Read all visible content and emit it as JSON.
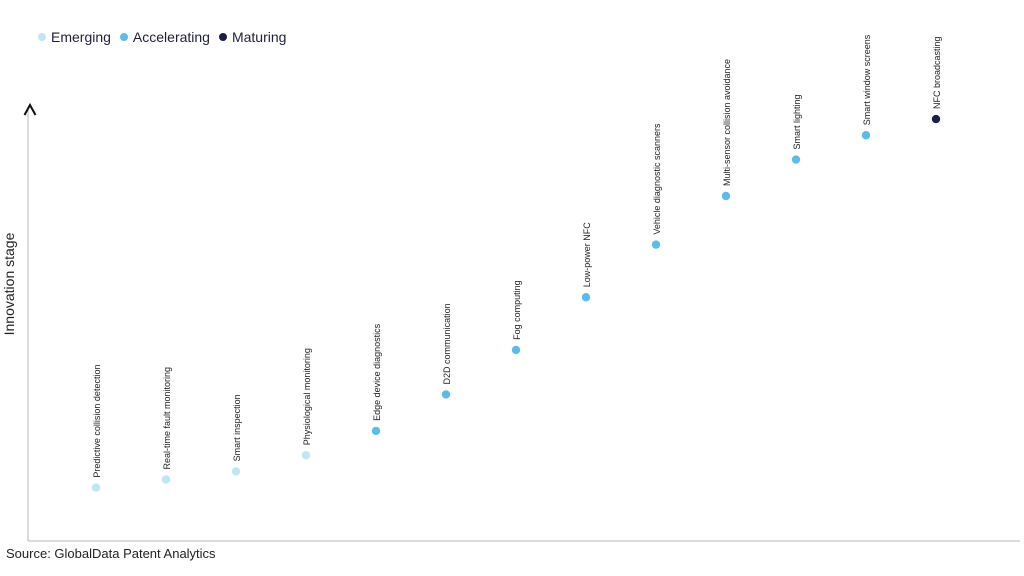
{
  "source": "Source: GlobalData Patent Analytics",
  "chart_data": {
    "type": "scatter",
    "title": "",
    "xlabel": "",
    "ylabel": "Innovation stage",
    "grid": false,
    "legend": {
      "placement": "top-left",
      "entries": [
        {
          "label": "Emerging",
          "color": "#bfe6f7"
        },
        {
          "label": "Accelerating",
          "color": "#5bbcea"
        },
        {
          "label": "Maturing",
          "color": "#1c1f45"
        }
      ]
    },
    "points": [
      {
        "label": "Predictive collision detection",
        "category": "Emerging",
        "y": 0.08
      },
      {
        "label": "Real-time fault monitoring",
        "category": "Emerging",
        "y": 0.1
      },
      {
        "label": "Smart inspection",
        "category": "Emerging",
        "y": 0.12
      },
      {
        "label": "Physiological monitoring",
        "category": "Emerging",
        "y": 0.16
      },
      {
        "label": "Edge device diagnostics",
        "category": "Accelerating",
        "y": 0.22
      },
      {
        "label": "D2D communication",
        "category": "Accelerating",
        "y": 0.31
      },
      {
        "label": "Fog computing",
        "category": "Accelerating",
        "y": 0.42
      },
      {
        "label": "Low-power NFC",
        "category": "Accelerating",
        "y": 0.55
      },
      {
        "label": "Vehicle diagnostic scanners",
        "category": "Accelerating",
        "y": 0.68
      },
      {
        "label": "Multi-sensor collision avoidance",
        "category": "Accelerating",
        "y": 0.8
      },
      {
        "label": "Smart lighting",
        "category": "Accelerating",
        "y": 0.89
      },
      {
        "label": "Smart window screens",
        "category": "Accelerating",
        "y": 0.95
      },
      {
        "label": "NFC broadcasting",
        "category": "Maturing",
        "y": 0.99
      }
    ]
  }
}
